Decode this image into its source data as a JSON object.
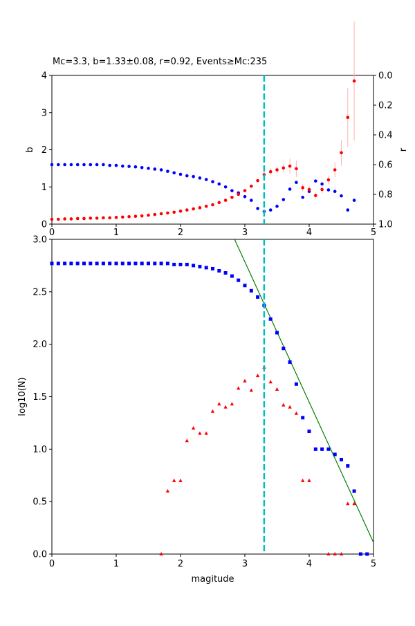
{
  "title": "Mc=3.3, b=1.33±0.08, r=0.92, Events≥Mc:235",
  "chart_data": [
    {
      "type": "scatter",
      "title": "Mc=3.3, b=1.33±0.08, r=0.92, Events≥Mc:235",
      "xlabel": "",
      "ylabel": "b",
      "y2label": "r",
      "xlim": [
        0,
        5
      ],
      "ylim": [
        0,
        4
      ],
      "y2lim": [
        1.0,
        0.0
      ],
      "y2_inverted": true,
      "xticks": [
        "0",
        "1",
        "2",
        "3",
        "4",
        "5"
      ],
      "yticks": [
        "0",
        "1",
        "2",
        "3",
        "4"
      ],
      "y2ticks": [
        "0.0",
        "0.2",
        "0.4",
        "0.6",
        "0.8",
        "1.0"
      ],
      "mc_line": {
        "x": 3.3,
        "color": "#00bfbf",
        "style": "dashed"
      },
      "series": [
        {
          "axis": "left",
          "color": "#ff0000",
          "marker": "circle",
          "x": [
            0.0,
            0.1,
            0.2,
            0.3,
            0.4,
            0.5,
            0.6,
            0.7,
            0.8,
            0.9,
            1.0,
            1.1,
            1.2,
            1.3,
            1.4,
            1.5,
            1.6,
            1.7,
            1.8,
            1.9,
            2.0,
            2.1,
            2.2,
            2.3,
            2.4,
            2.5,
            2.6,
            2.7,
            2.8,
            2.9,
            3.0,
            3.1,
            3.2,
            3.3,
            3.4,
            3.5,
            3.6,
            3.7,
            3.8,
            3.9,
            4.0,
            4.1,
            4.2,
            4.3,
            4.4,
            4.5,
            4.6,
            4.7
          ],
          "y": [
            0.13,
            0.13,
            0.14,
            0.14,
            0.15,
            0.15,
            0.16,
            0.16,
            0.17,
            0.17,
            0.18,
            0.19,
            0.2,
            0.21,
            0.22,
            0.24,
            0.26,
            0.28,
            0.3,
            0.32,
            0.35,
            0.38,
            0.41,
            0.44,
            0.48,
            0.52,
            0.58,
            0.64,
            0.72,
            0.8,
            0.9,
            1.02,
            1.17,
            1.33,
            1.41,
            1.46,
            1.51,
            1.56,
            1.49,
            0.98,
            0.93,
            0.77,
            0.93,
            1.19,
            1.46,
            1.92,
            2.87,
            3.85
          ],
          "yerr": [
            0,
            0,
            0,
            0,
            0,
            0,
            0,
            0,
            0,
            0,
            0,
            0,
            0,
            0,
            0,
            0,
            0,
            0,
            0,
            0,
            0,
            0,
            0,
            0,
            0,
            0,
            0,
            0,
            0,
            0,
            0.02,
            0.03,
            0.05,
            0.08,
            0.09,
            0.1,
            0.12,
            0.2,
            0.22,
            0.1,
            0.1,
            0.08,
            0.1,
            0.12,
            0.2,
            0.35,
            0.8,
            1.6
          ]
        },
        {
          "axis": "right",
          "color": "#0000ff",
          "marker": "circle",
          "x": [
            0.0,
            0.1,
            0.2,
            0.3,
            0.4,
            0.5,
            0.6,
            0.7,
            0.8,
            0.9,
            1.0,
            1.1,
            1.2,
            1.3,
            1.4,
            1.5,
            1.6,
            1.7,
            1.8,
            1.9,
            2.0,
            2.1,
            2.2,
            2.3,
            2.4,
            2.5,
            2.6,
            2.7,
            2.8,
            2.9,
            3.0,
            3.1,
            3.2,
            3.3,
            3.4,
            3.5,
            3.6,
            3.7,
            3.8,
            3.9,
            4.0,
            4.1,
            4.2,
            4.3,
            4.4,
            4.5,
            4.6,
            4.7
          ],
          "y": [
            0.6,
            0.6,
            0.6,
            0.6,
            0.6,
            0.6,
            0.6,
            0.6,
            0.6,
            0.605,
            0.605,
            0.61,
            0.612,
            0.615,
            0.62,
            0.625,
            0.63,
            0.635,
            0.645,
            0.655,
            0.665,
            0.675,
            0.68,
            0.69,
            0.7,
            0.715,
            0.73,
            0.75,
            0.775,
            0.79,
            0.815,
            0.84,
            0.895,
            0.915,
            0.905,
            0.88,
            0.835,
            0.765,
            0.72,
            0.82,
            0.78,
            0.71,
            0.73,
            0.77,
            0.78,
            0.81,
            0.905,
            0.84
          ]
        }
      ]
    },
    {
      "type": "scatter",
      "title": "",
      "xlabel": "magitude",
      "ylabel": "log10(N)",
      "xlim": [
        0,
        5
      ],
      "ylim": [
        0,
        3
      ],
      "xticks": [
        "0",
        "1",
        "2",
        "3",
        "4",
        "5"
      ],
      "yticks": [
        "0.0",
        "0.5",
        "1.0",
        "1.5",
        "2.0",
        "2.5",
        "3.0"
      ],
      "mc_line": {
        "x": 3.3,
        "color": "#00bfbf",
        "style": "dashed"
      },
      "fit_line": {
        "color": "#008000",
        "x": [
          2.84,
          5.0
        ],
        "y": [
          3.0,
          0.11
        ]
      },
      "series": [
        {
          "name": "",
          "color": "#0000ff",
          "marker": "square",
          "x": [
            0.0,
            0.1,
            0.2,
            0.3,
            0.4,
            0.5,
            0.6,
            0.7,
            0.8,
            0.9,
            1.0,
            1.1,
            1.2,
            1.3,
            1.4,
            1.5,
            1.6,
            1.7,
            1.8,
            1.9,
            2.0,
            2.1,
            2.2,
            2.3,
            2.4,
            2.5,
            2.6,
            2.7,
            2.8,
            2.9,
            3.0,
            3.1,
            3.2,
            3.3,
            3.4,
            3.5,
            3.6,
            3.7,
            3.8,
            3.9,
            4.0,
            4.1,
            4.2,
            4.3,
            4.4,
            4.5,
            4.6,
            4.7,
            4.8,
            4.9
          ],
          "y": [
            2.77,
            2.77,
            2.77,
            2.77,
            2.77,
            2.77,
            2.77,
            2.77,
            2.77,
            2.77,
            2.77,
            2.77,
            2.77,
            2.77,
            2.77,
            2.77,
            2.77,
            2.77,
            2.77,
            2.76,
            2.76,
            2.76,
            2.75,
            2.74,
            2.73,
            2.72,
            2.7,
            2.68,
            2.65,
            2.61,
            2.56,
            2.51,
            2.45,
            2.37,
            2.24,
            2.11,
            1.96,
            1.83,
            1.62,
            1.3,
            1.17,
            1.0,
            1.0,
            1.0,
            0.95,
            0.9,
            0.84,
            0.6,
            0.0,
            0.0
          ]
        },
        {
          "name": "",
          "color": "#ff0000",
          "marker": "triangle",
          "x": [
            1.7,
            1.8,
            1.9,
            2.0,
            2.1,
            2.2,
            2.3,
            2.4,
            2.5,
            2.6,
            2.7,
            2.8,
            2.9,
            3.0,
            3.1,
            3.2,
            3.3,
            3.4,
            3.5,
            3.6,
            3.7,
            3.8,
            3.9,
            4.0,
            4.3,
            4.4,
            4.5,
            4.6,
            4.7
          ],
          "y": [
            0.0,
            0.6,
            0.7,
            0.7,
            1.08,
            1.2,
            1.15,
            1.15,
            1.36,
            1.43,
            1.4,
            1.43,
            1.58,
            1.65,
            1.56,
            1.7,
            1.78,
            1.64,
            1.57,
            1.42,
            1.4,
            1.34,
            0.7,
            0.7,
            0.0,
            0.0,
            0.0,
            0.48,
            0.48
          ]
        }
      ]
    }
  ]
}
